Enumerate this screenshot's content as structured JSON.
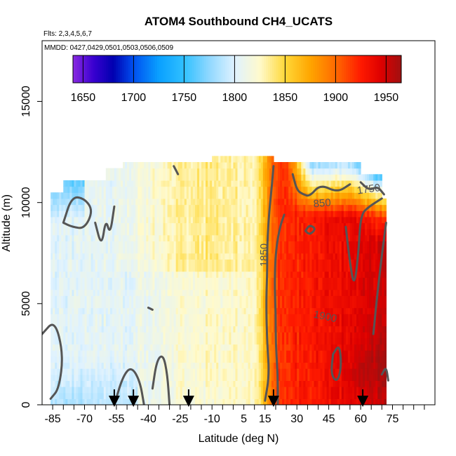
{
  "chart_data": {
    "type": "heatmap",
    "title": "ATOM4 Southbound CH4_UCATS",
    "subtitle_flights": "Flts: 2,3,4,5,6,7",
    "subtitle_dates": "MMDD: 0427,0429,0501,0503,0506,0509",
    "xlabel": "Latitude (deg N)",
    "ylabel": "Altitude (m)",
    "xlim": [
      -90,
      95
    ],
    "ylim": [
      0,
      18000
    ],
    "x_ticks": [
      -85,
      -70,
      -55,
      -40,
      -25,
      -10,
      5,
      15,
      30,
      45,
      60,
      75
    ],
    "x_tick_labels": [
      "-85",
      "-70",
      "-55",
      "-40",
      "-25",
      "-10",
      "5",
      "15",
      "30",
      "45",
      "60",
      "75"
    ],
    "x_minor_ticks": [
      -80,
      -75,
      -65,
      -60,
      -50,
      -45,
      -35,
      -30,
      -20,
      -15,
      -5,
      0,
      10,
      20,
      25,
      35,
      40,
      50,
      55,
      65,
      70,
      80,
      85,
      90
    ],
    "y_ticks": [
      0,
      5000,
      10000,
      15000
    ],
    "y_tick_labels": [
      "0",
      "5000",
      "10000",
      "15000"
    ],
    "colorbar": {
      "range": [
        1640,
        1965
      ],
      "ticks": [
        1650,
        1700,
        1750,
        1800,
        1850,
        1900,
        1950
      ],
      "tick_labels": [
        "1650",
        "1700",
        "1750",
        "1800",
        "1850",
        "1900",
        "1950"
      ],
      "stops": [
        {
          "v": 1640,
          "color": "#8a2be2"
        },
        {
          "v": 1660,
          "color": "#3a00d0"
        },
        {
          "v": 1680,
          "color": "#0000b0"
        },
        {
          "v": 1700,
          "color": "#0050f0"
        },
        {
          "v": 1725,
          "color": "#0aa0ff"
        },
        {
          "v": 1750,
          "color": "#30c0ff"
        },
        {
          "v": 1775,
          "color": "#90d8ff"
        },
        {
          "v": 1800,
          "color": "#dff2ff"
        },
        {
          "v": 1825,
          "color": "#fffacc"
        },
        {
          "v": 1850,
          "color": "#ffd838"
        },
        {
          "v": 1875,
          "color": "#ffa500"
        },
        {
          "v": 1900,
          "color": "#ff6a00"
        },
        {
          "v": 1925,
          "color": "#ff1a00"
        },
        {
          "v": 1945,
          "color": "#dd0000"
        },
        {
          "v": 1965,
          "color": "#a01010"
        }
      ]
    },
    "contour_labels": [
      {
        "text": "1850",
        "x": 16,
        "y": 7400,
        "angle": -90
      },
      {
        "text": "1900",
        "x": 43,
        "y": 4200,
        "angle": 12
      },
      {
        "text": "1750",
        "x": 64,
        "y": 10500,
        "angle": -8
      },
      {
        "text": "850",
        "x": 42,
        "y": 9800,
        "angle": -5
      }
    ],
    "flight_arrows_lat": [
      -56,
      -47,
      -21,
      19,
      61
    ],
    "grid": false,
    "legend": "colorbar top"
  }
}
